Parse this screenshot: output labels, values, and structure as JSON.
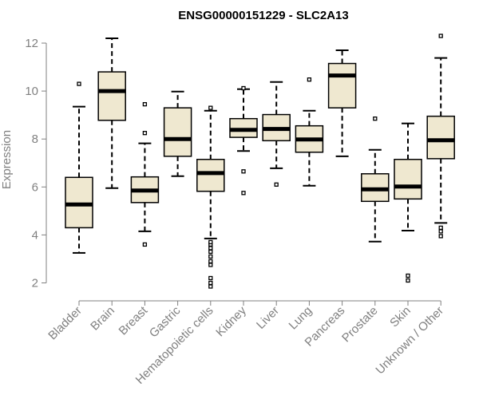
{
  "chart_data": {
    "type": "boxplot",
    "title": "ENSG00000151229 - SLC2A13",
    "xlabel": "",
    "ylabel": "Expression",
    "ylim": [
      1.75,
      12.4
    ],
    "yticks": [
      2,
      4,
      6,
      8,
      10,
      12
    ],
    "grid": false,
    "colors": {
      "box_fill": "#efe8d0",
      "axis": "#808080",
      "median": "#000000"
    },
    "categories": [
      "Bladder",
      "Brain",
      "Breast",
      "Gastric",
      "Hematopoietic cells",
      "Kidney",
      "Liver",
      "Lung",
      "Pancreas",
      "Prostate",
      "Skin",
      "Unknown / Other"
    ],
    "boxes": [
      {
        "name": "Bladder",
        "whisker_low": 3.25,
        "q1": 4.3,
        "median": 5.27,
        "q3": 6.4,
        "whisker_high": 9.35,
        "outliers": [
          10.3
        ]
      },
      {
        "name": "Brain",
        "whisker_low": 5.95,
        "q1": 8.78,
        "median": 10.0,
        "q3": 10.8,
        "whisker_high": 12.2,
        "outliers": []
      },
      {
        "name": "Breast",
        "whisker_low": 4.15,
        "q1": 5.35,
        "median": 5.85,
        "q3": 6.42,
        "whisker_high": 7.82,
        "outliers": [
          3.6,
          8.25,
          9.45
        ]
      },
      {
        "name": "Gastric",
        "whisker_low": 6.45,
        "q1": 7.28,
        "median": 8.0,
        "q3": 9.3,
        "whisker_high": 9.98,
        "outliers": []
      },
      {
        "name": "Hematopoietic cells",
        "whisker_low": 3.85,
        "q1": 5.82,
        "median": 6.58,
        "q3": 7.15,
        "whisker_high": 9.18,
        "outliers": [
          1.85,
          2.0,
          2.2,
          2.75,
          2.9,
          3.1,
          3.3,
          3.45,
          3.6,
          3.7,
          9.3
        ]
      },
      {
        "name": "Kidney",
        "whisker_low": 7.5,
        "q1": 8.07,
        "median": 8.38,
        "q3": 8.85,
        "whisker_high": 10.08,
        "outliers": [
          5.75,
          6.65,
          10.12
        ]
      },
      {
        "name": "Liver",
        "whisker_low": 6.78,
        "q1": 7.93,
        "median": 8.42,
        "q3": 9.02,
        "whisker_high": 10.38,
        "outliers": [
          6.1
        ]
      },
      {
        "name": "Lung",
        "whisker_low": 6.05,
        "q1": 7.45,
        "median": 7.98,
        "q3": 8.55,
        "whisker_high": 9.18,
        "outliers": [
          10.48
        ]
      },
      {
        "name": "Pancreas",
        "whisker_low": 7.28,
        "q1": 9.3,
        "median": 10.65,
        "q3": 11.15,
        "whisker_high": 11.7,
        "outliers": []
      },
      {
        "name": "Prostate",
        "whisker_low": 3.72,
        "q1": 5.4,
        "median": 5.9,
        "q3": 6.55,
        "whisker_high": 7.55,
        "outliers": [
          8.85
        ]
      },
      {
        "name": "Skin",
        "whisker_low": 4.18,
        "q1": 5.5,
        "median": 6.02,
        "q3": 7.15,
        "whisker_high": 8.65,
        "outliers": [
          2.1,
          2.3
        ]
      },
      {
        "name": "Unknown / Other",
        "whisker_low": 4.5,
        "q1": 7.18,
        "median": 7.95,
        "q3": 8.95,
        "whisker_high": 11.38,
        "outliers": [
          3.95,
          4.15,
          4.3,
          12.3
        ]
      }
    ]
  }
}
